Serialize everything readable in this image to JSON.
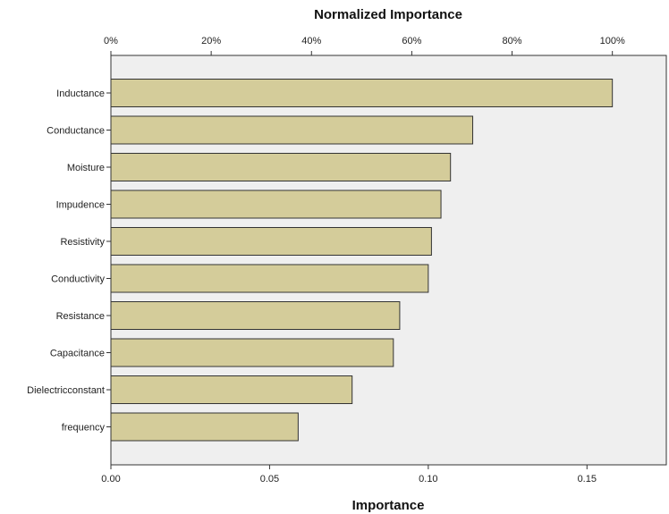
{
  "chart_data": {
    "type": "bar",
    "orientation": "horizontal",
    "title": "Normalized Importance",
    "xlabel": "Importance",
    "categories": [
      "Inductance",
      "Conductance",
      "Moisture",
      "Impudence",
      "Resistivity",
      "Conductivity",
      "Resistance",
      "Capacitance",
      "Dielectricconstant",
      "frequency"
    ],
    "values": [
      0.158,
      0.114,
      0.107,
      0.104,
      0.101,
      0.1,
      0.091,
      0.089,
      0.076,
      0.059
    ],
    "normalized_percent": [
      100,
      72.2,
      67.7,
      65.8,
      63.9,
      63.3,
      57.6,
      56.3,
      48.1,
      37.3
    ],
    "xlim": [
      0,
      0.175
    ],
    "x_ticks": [
      "0.00",
      "0.05",
      "0.10",
      "0.15"
    ],
    "top_axis_ticks": [
      "0%",
      "20%",
      "40%",
      "60%",
      "80%",
      "100%"
    ],
    "colors": {
      "bar_fill": "#d4cc9a",
      "bar_stroke": "#333333",
      "plot_background": "#efefef"
    },
    "grid": false,
    "legend": "none"
  }
}
